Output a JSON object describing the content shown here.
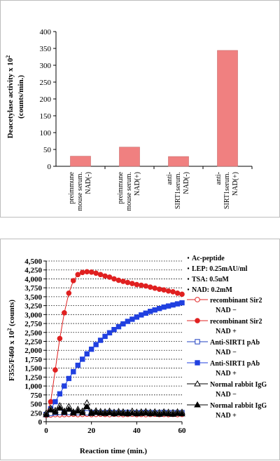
{
  "chart_data": [
    {
      "type": "bar",
      "ylabel_line1": "Deacetylase activity x 10",
      "ylabel_exp": "2",
      "ylabel_line2": "(counts/min.)",
      "ylim": [
        0,
        400
      ],
      "yticks": [
        0,
        50,
        100,
        150,
        200,
        250,
        300,
        350,
        400
      ],
      "bar_color": "#f08080",
      "categories": [
        [
          "preimmune",
          "mouse serum.",
          "NAD(-)"
        ],
        [
          "preimmune",
          "mouse serum.",
          "NAD(+)"
        ],
        [
          "anti-",
          "SIRT1serum.",
          "NAD(-)"
        ],
        [
          "anti-",
          "SIRT1serum.",
          "NAD(+)"
        ]
      ],
      "values": [
        30,
        57,
        29,
        344
      ],
      "grid": false
    },
    {
      "type": "line",
      "xlabel": "Reaction time (min.)",
      "ylabel_prefix": "F355/F460 x 10",
      "ylabel_exp": "2",
      "ylabel_suffix": " (counts)",
      "xlim": [
        0,
        60
      ],
      "ylim": [
        0,
        4500
      ],
      "xticks": [
        0,
        20,
        40,
        60
      ],
      "yticks": [
        0,
        250,
        500,
        750,
        1000,
        1250,
        1500,
        1750,
        2000,
        2250,
        2500,
        2750,
        3000,
        3250,
        3500,
        3750,
        4000,
        4250,
        4500
      ],
      "yticklabels": [
        "0",
        "250",
        "500",
        "750",
        "1,000",
        "1,250",
        "1,500",
        "1,750",
        "2,000",
        "2,250",
        "2,500",
        "2,750",
        "3,000",
        "3,250",
        "3,500",
        "3,750",
        "4,000",
        "4,250",
        "4,500"
      ],
      "grid": "horizontal-dotted",
      "conditions": [
        "Ac-peptide",
        "LEP: 0.25mAU/ml",
        "TSA: 0.5uM",
        "NAD: 0.2mM"
      ],
      "series": [
        {
          "name_line1": "recombinant Sir2",
          "name_line2": "NAD −",
          "color": "#e02020",
          "marker": "circle-open",
          "x": [
            0,
            2,
            4,
            6,
            8,
            10,
            12,
            14,
            16,
            18,
            20,
            22,
            24,
            26,
            28,
            30,
            32,
            34,
            36,
            38,
            40,
            42,
            44,
            46,
            48,
            50,
            52,
            54,
            56,
            58,
            60
          ],
          "y": [
            180,
            190,
            200,
            195,
            200,
            205,
            210,
            200,
            205,
            210,
            200,
            205,
            210,
            205,
            200,
            210,
            205,
            200,
            205,
            210,
            200,
            205,
            200,
            205,
            210,
            200,
            205,
            200,
            205,
            200,
            205
          ]
        },
        {
          "name_line1": "recombinant Sir2",
          "name_line2": "NAD +",
          "color": "#e02020",
          "marker": "circle-filled",
          "x": [
            0,
            2,
            4,
            6,
            8,
            10,
            12,
            14,
            16,
            18,
            20,
            22,
            24,
            26,
            28,
            30,
            32,
            34,
            36,
            38,
            40,
            42,
            44,
            46,
            48,
            50,
            52,
            54,
            56,
            58,
            60
          ],
          "y": [
            200,
            560,
            1450,
            2330,
            3050,
            3600,
            3950,
            4120,
            4180,
            4200,
            4190,
            4160,
            4120,
            4080,
            4050,
            4000,
            3960,
            3930,
            3900,
            3870,
            3840,
            3820,
            3800,
            3770,
            3740,
            3710,
            3690,
            3660,
            3640,
            3600,
            3570
          ]
        },
        {
          "name_line1": "Anti-SIRT1 pAb",
          "name_line2": "NAD −",
          "color": "#2040c0",
          "marker": "square-open",
          "x": [
            0,
            2,
            4,
            6,
            8,
            10,
            12,
            14,
            16,
            18,
            20,
            22,
            24,
            26,
            28,
            30,
            32,
            34,
            36,
            38,
            40,
            42,
            44,
            46,
            48,
            50,
            52,
            54,
            56,
            58,
            60
          ],
          "y": [
            200,
            230,
            250,
            260,
            255,
            260,
            250,
            255,
            260,
            250,
            255,
            260,
            250,
            255,
            260,
            255,
            250,
            255,
            260,
            255,
            250,
            255,
            260,
            255,
            250,
            255,
            260,
            250,
            255,
            250,
            255
          ]
        },
        {
          "name_line1": "Anti-SIRT1 pAb",
          "name_line2": "NAD +",
          "color": "#2040e0",
          "marker": "square-filled",
          "x": [
            0,
            2,
            4,
            6,
            8,
            10,
            12,
            14,
            16,
            18,
            20,
            22,
            24,
            26,
            28,
            30,
            32,
            34,
            36,
            38,
            40,
            42,
            44,
            46,
            48,
            50,
            52,
            54,
            56,
            58,
            60
          ],
          "y": [
            200,
            360,
            560,
            780,
            1000,
            1210,
            1400,
            1580,
            1750,
            1900,
            2030,
            2160,
            2280,
            2390,
            2490,
            2580,
            2660,
            2740,
            2810,
            2870,
            2930,
            2990,
            3040,
            3090,
            3130,
            3170,
            3210,
            3240,
            3270,
            3300,
            3330
          ]
        },
        {
          "name_line1": "Normal rabbit IgG",
          "name_line2": "NAD −",
          "color": "#000000",
          "marker": "triangle-open",
          "x": [
            0,
            2,
            4,
            6,
            8,
            10,
            12,
            14,
            16,
            18,
            20,
            22,
            24,
            26,
            28,
            30,
            32,
            34,
            36,
            38,
            40,
            42,
            44,
            46,
            48,
            50,
            52,
            54,
            56,
            58,
            60
          ],
          "y": [
            250,
            380,
            320,
            450,
            300,
            430,
            280,
            350,
            300,
            530,
            270,
            310,
            290,
            280,
            300,
            270,
            290,
            280,
            260,
            300,
            270,
            280,
            290,
            270,
            280,
            260,
            280,
            270,
            260,
            280,
            270
          ]
        },
        {
          "name_line1": "Normal rabbit IgG",
          "name_line2": "NAD +",
          "color": "#000000",
          "marker": "triangle-filled",
          "x": [
            0,
            2,
            4,
            6,
            8,
            10,
            12,
            14,
            16,
            18,
            20,
            22,
            24,
            26,
            28,
            30,
            32,
            34,
            36,
            38,
            40,
            42,
            44,
            46,
            48,
            50,
            52,
            54,
            56,
            58,
            60
          ],
          "y": [
            200,
            330,
            270,
            380,
            260,
            350,
            240,
            300,
            250,
            420,
            230,
            260,
            240,
            230,
            250,
            220,
            240,
            230,
            220,
            240,
            220,
            230,
            240,
            220,
            230,
            210,
            230,
            220,
            210,
            230,
            220
          ]
        }
      ]
    }
  ]
}
